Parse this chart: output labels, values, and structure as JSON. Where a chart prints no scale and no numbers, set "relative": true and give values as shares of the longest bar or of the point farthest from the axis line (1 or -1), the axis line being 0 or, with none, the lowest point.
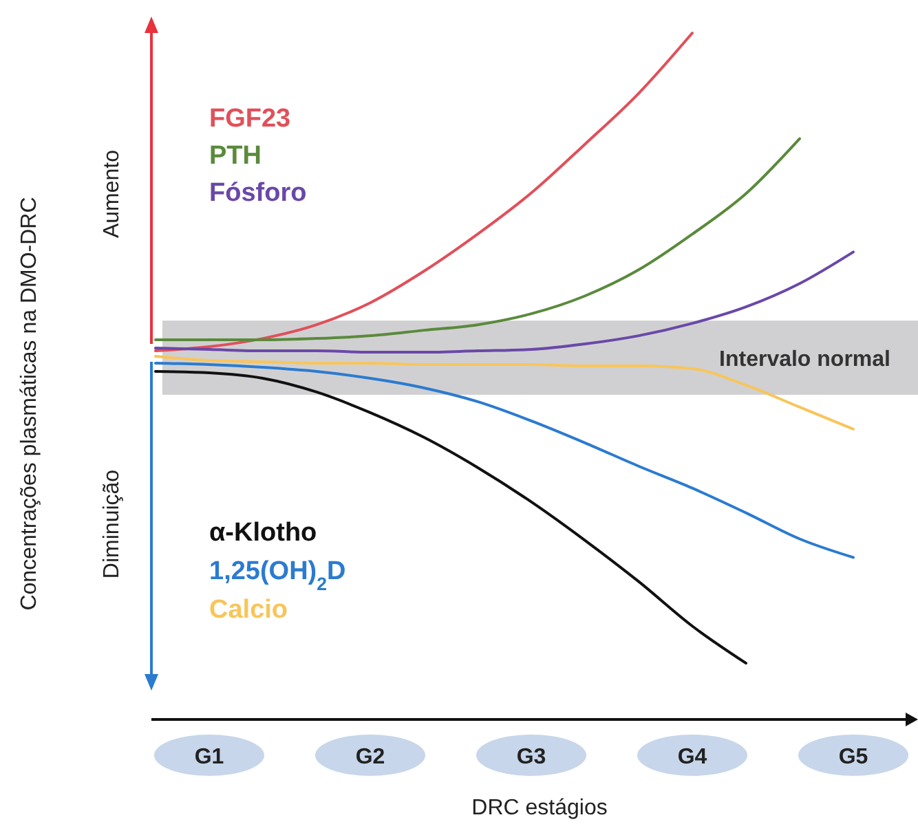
{
  "chart_data": {
    "type": "line",
    "relative": true,
    "xlabel": "DRC estágios",
    "categories": [
      null,
      "G1",
      null,
      null,
      "G2",
      null,
      null,
      "G3",
      null,
      null,
      "G4",
      null,
      null,
      "G5"
    ],
    "legend": "left",
    "annotations": [
      "Aumento",
      "Diminuição",
      "Concentrações plasmáticas na DMO-DRC"
    ],
    "bands": [
      {
        "axis": "y",
        "from": 0.473,
        "to": 0.581,
        "label": "Intervalo normal",
        "color": "#d0d0d2"
      }
    ],
    "series": [
      {
        "name": "FGF23",
        "color": "#e0505a",
        "values": [
          0.537,
          0.543,
          0.555,
          0.575,
          0.607,
          0.653,
          0.707,
          0.767,
          0.838,
          0.912,
          1,
          null,
          null,
          null
        ]
      },
      {
        "name": "PTH",
        "color": "#5a8a3c",
        "values": [
          0.553,
          0.553,
          0.553,
          0.555,
          0.559,
          0.567,
          0.575,
          0.591,
          0.617,
          0.655,
          0.707,
          0.766,
          0.846,
          null
        ]
      },
      {
        "name": "Fósforo",
        "color": "#6a48a8",
        "values": [
          0.541,
          0.539,
          0.537,
          0.537,
          0.535,
          0.535,
          0.537,
          0.539,
          0.547,
          0.559,
          0.577,
          0.601,
          0.635,
          0.681
        ]
      },
      {
        "name": "α-Klotho",
        "color": "#111111",
        "values": [
          0.507,
          0.505,
          0.497,
          0.477,
          0.447,
          0.411,
          0.367,
          0.317,
          0.261,
          0.201,
          0.136,
          0.082,
          null,
          null
        ]
      },
      {
        "name": "1,25(OH)$_{2}$D",
        "color": "#2b7bd0",
        "values": [
          0.519,
          0.517,
          0.513,
          0.507,
          0.497,
          0.483,
          0.463,
          0.435,
          0.403,
          0.369,
          0.337,
          0.301,
          0.263,
          0.236
        ]
      },
      {
        "name": "Calcio",
        "color": "#f8c55a",
        "values": [
          0.529,
          0.523,
          0.521,
          0.519,
          0.519,
          0.517,
          0.517,
          0.517,
          0.515,
          0.515,
          0.511,
          0.487,
          0.455,
          0.423
        ]
      }
    ]
  }
}
